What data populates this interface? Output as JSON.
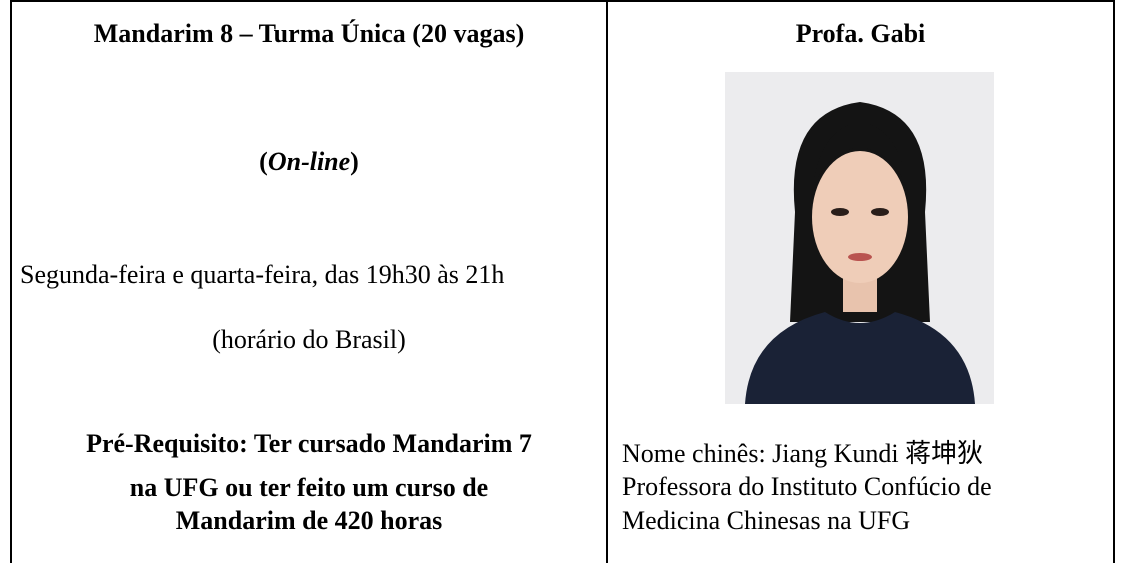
{
  "course": {
    "title": "Mandarim 8 – Turma Única (20 vagas)",
    "modality": {
      "open": "(",
      "text": "On-line",
      "close": ")"
    },
    "schedule": "Segunda-feira e quarta-feira, das 19h30 às 21h",
    "timezone": "(horário do Brasil)",
    "prerequisite": [
      "Pré-Requisito: Ter cursado Mandarim 7",
      "na UFG ou ter feito um curso de",
      "Mandarim de 420 horas"
    ]
  },
  "teacher": {
    "name": "Profa. Gabi",
    "chinese_name": "Nome chinês: Jiang Kundi 蒋坤狄",
    "description": [
      "Professora do Instituto Confúcio de",
      "Medicina Chinesas na UFG"
    ]
  }
}
